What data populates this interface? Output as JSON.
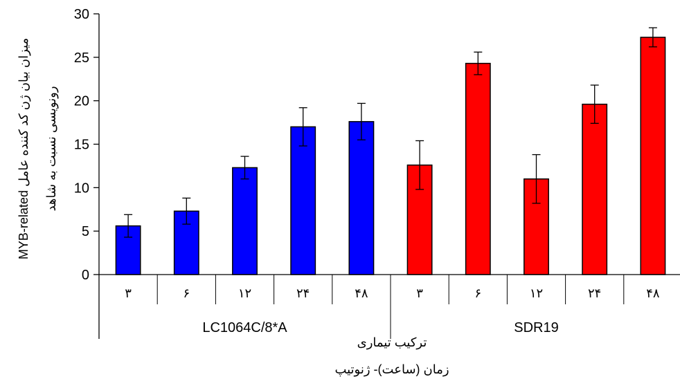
{
  "chart_data": {
    "type": "bar",
    "title": "",
    "ylabel_lines": [
      "میزان بیان ژن کد کننده عامل MYB-related",
      "رونویسی نسبت به شاهد"
    ],
    "xlabel_lines": [
      "ترکیب تیماری",
      "زمان (ساعت)- ژنوتیپ"
    ],
    "ylim": [
      0,
      30
    ],
    "yticks": [
      "0",
      "5",
      "10",
      "15",
      "20",
      "25",
      "30"
    ],
    "grid": false,
    "legend": "none",
    "groups": [
      {
        "name": "LC1064C/8*A",
        "color": "#0000ff",
        "categories": [
          "۳",
          "۶",
          "۱۲",
          "۲۴",
          "۴۸"
        ],
        "values": [
          5.6,
          7.3,
          12.3,
          17.0,
          17.6
        ],
        "errors": [
          1.3,
          1.5,
          1.3,
          2.2,
          2.1
        ]
      },
      {
        "name": "SDR19",
        "color": "#ff0000",
        "categories": [
          "۳",
          "۶",
          "۱۲",
          "۲۴",
          "۴۸"
        ],
        "values": [
          12.6,
          24.3,
          11.0,
          19.6,
          27.3
        ],
        "errors": [
          2.8,
          1.3,
          2.8,
          2.2,
          1.1
        ]
      }
    ]
  }
}
